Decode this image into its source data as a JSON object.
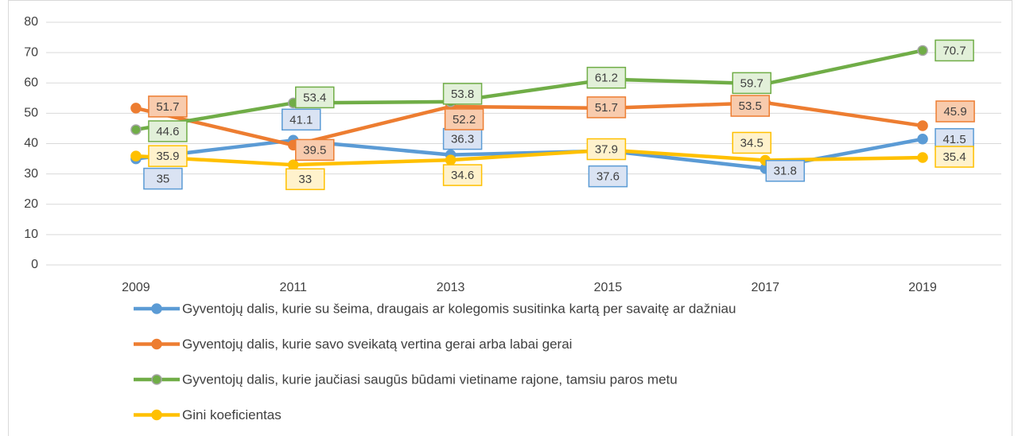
{
  "chart_data": {
    "type": "line",
    "categories": [
      "2009",
      "2011",
      "2013",
      "2015",
      "2017",
      "2019"
    ],
    "series": [
      {
        "name": "Gyventojų dalis, kurie su šeima, draugais ar kolegomis susitinka kartą per savaitę ar dažniau",
        "color": "#5b9bd5",
        "label_fill": "#dae3f3",
        "values": [
          35,
          41.1,
          36.3,
          37.6,
          31.8,
          41.5
        ]
      },
      {
        "name": "Gyventojų dalis, kurie savo sveikatą vertina gerai arba labai gerai",
        "color": "#ed7d31",
        "label_fill": "#f8cbad",
        "values": [
          51.7,
          39.5,
          52.2,
          51.7,
          53.5,
          45.9
        ]
      },
      {
        "name": "Gyventojų dalis, kurie jaučiasi saugūs būdami vietiname rajone, tamsiu paros metu",
        "color": "#70ad47",
        "label_fill": "#e2f0d9",
        "values": [
          44.6,
          53.4,
          53.8,
          61.2,
          59.7,
          70.7
        ]
      },
      {
        "name": "Gini koeficientas",
        "color": "#ffc000",
        "label_fill": "#fff2cc",
        "values": [
          35.9,
          33,
          34.6,
          37.9,
          34.5,
          35.4
        ]
      }
    ],
    "ylim": [
      0,
      80
    ],
    "yticks": [
      0,
      10,
      20,
      30,
      40,
      50,
      60,
      70,
      80
    ],
    "grid": true,
    "legend": "bottom"
  }
}
